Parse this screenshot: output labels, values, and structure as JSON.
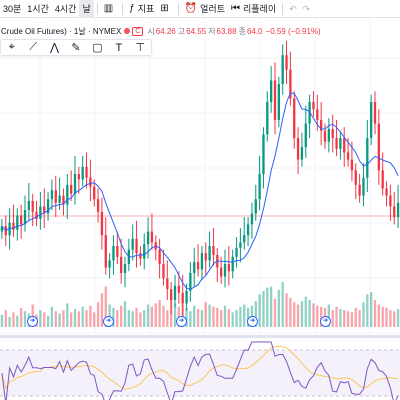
{
  "toolbar": {
    "timeframes": [
      "30분",
      "1시간",
      "4시간",
      "날"
    ],
    "active_timeframe": "날",
    "indicators_label": "지표",
    "alerts_label": "얼러트",
    "replay_label": "리플레이"
  },
  "legend": {
    "symbol": "Crude Oil Futures) · 1날 · NYMEX",
    "badge": "C",
    "o_label": "시",
    "o_value": "64.26",
    "h_label": "고",
    "h_value": "64.55",
    "l_label": "저",
    "l_value": "63.88",
    "c_label": "종",
    "c_value": "64.0",
    "change": "−0.59 (−0.91%)"
  },
  "colors": {
    "up": "#089981",
    "down": "#f23645",
    "ma": "#2962ff",
    "rsi": "#7e57c2",
    "rsi_band": "#ede7f6",
    "rsi_signal": "#f9c44d",
    "price_line": "#f23645"
  },
  "drawing_tools": [
    "cursor-icon",
    "trend-line-icon",
    "pattern-icon",
    "brush-icon",
    "rectangle-icon",
    "text-icon",
    "ruler-icon"
  ],
  "events": [
    "earnings-icon",
    "earnings-icon",
    "earnings-icon",
    "earnings-icon",
    "earnings-icon",
    "earnings-icon"
  ],
  "chart_data": {
    "type": "candlestick",
    "candles_close": [
      81,
      76,
      83,
      79,
      87,
      82,
      90,
      95,
      89,
      85,
      92,
      88,
      96,
      101,
      94,
      98,
      93,
      104,
      99,
      110,
      107,
      114,
      108,
      103,
      96,
      89,
      76,
      58,
      62,
      70,
      64,
      55,
      60,
      68,
      74,
      66,
      63,
      71,
      78,
      72,
      68,
      60,
      52,
      46,
      40,
      48,
      44,
      38,
      45,
      55,
      61,
      57,
      66,
      62,
      70,
      65,
      58,
      53,
      60,
      56,
      64,
      69,
      72,
      76,
      82,
      88,
      96,
      110,
      132,
      150,
      162,
      140,
      160,
      176,
      168,
      152,
      130,
      118,
      125,
      138,
      150,
      146,
      140,
      134,
      128,
      135,
      130,
      124,
      130,
      122,
      118,
      112,
      104,
      98,
      108,
      130,
      150,
      138,
      112,
      102,
      98,
      92,
      86,
      94
    ],
    "volumes": [
      22,
      30,
      18,
      26,
      20,
      34,
      28,
      24,
      40,
      22,
      30,
      26,
      20,
      36,
      28,
      24,
      30,
      42,
      26,
      32,
      28,
      36,
      30,
      38,
      26,
      44,
      60,
      72,
      40,
      34,
      30,
      38,
      46,
      30,
      28,
      34,
      26,
      30,
      40,
      36,
      42,
      48,
      38,
      30,
      54,
      42,
      36,
      40,
      34,
      28,
      38,
      32,
      30,
      44,
      40,
      36,
      34,
      30,
      38,
      32,
      26,
      30,
      36,
      40,
      34,
      38,
      46,
      58,
      64,
      70,
      72,
      50,
      66,
      80,
      60,
      52,
      44,
      40,
      46,
      54,
      48,
      42,
      38,
      36,
      34,
      40,
      30,
      36,
      32,
      30,
      28,
      26,
      34,
      30,
      44,
      58,
      62,
      48,
      40,
      36,
      34,
      30,
      28,
      32
    ]
  }
}
